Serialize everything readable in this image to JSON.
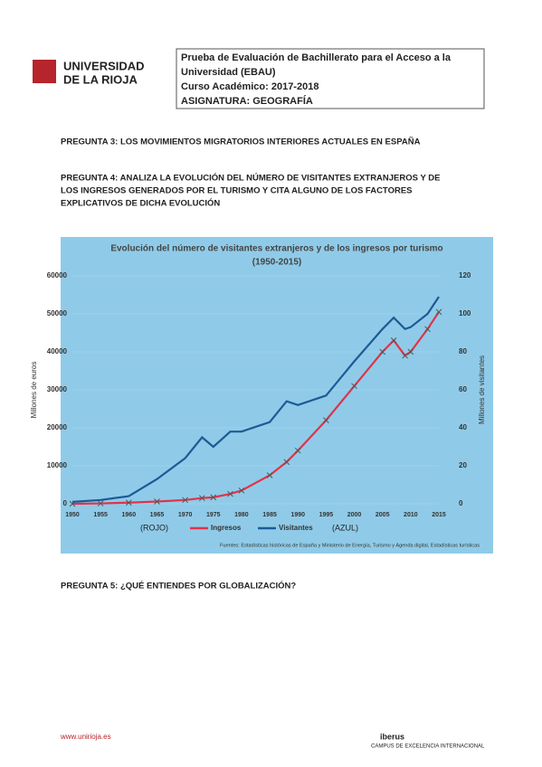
{
  "header": {
    "university": [
      "UNIVERSIDAD",
      "DE LA RIOJA"
    ],
    "lines": [
      "Prueba de Evaluación de Bachillerato para el Acceso a la",
      "Universidad (EBAU)",
      "Curso Académico: 2017-2018",
      "ASIGNATURA: GEOGRAFÍA"
    ]
  },
  "questions": [
    [
      "PREGUNTA 3: LOS MOVIMIENTOS MIGRATORIOS INTERIORES ACTUALES EN ESPAÑA"
    ],
    [
      "PREGUNTA 4: ANALIZA LA EVOLUCIÓN DEL NÚMERO DE VISITANTES EXTRANJEROS Y DE",
      "LOS INGRESOS GENERADOS POR EL TURISMO Y CITA ALGUNO DE LOS FACTORES",
      "EXPLICATIVOS DE DICHA EVOLUCIÓN"
    ]
  ],
  "question5": "PREGUNTA 5: ¿QUÉ ENTIENDES POR GLOBALIZACIÓN?",
  "chart_data": {
    "type": "line",
    "title": [
      "Evolución del número de visitantes extranjeros y de los ingresos por turismo",
      "(1950-2015)"
    ],
    "ylabel": "Millones de euros",
    "y2label": "Millones de visitantes",
    "x": [
      1950,
      1955,
      1960,
      1965,
      1970,
      1973,
      1975,
      1978,
      1980,
      1985,
      1988,
      1990,
      1995,
      2000,
      2005,
      2007,
      2009,
      2010,
      2013,
      2015
    ],
    "series": [
      {
        "name": "Ingresos",
        "color": "#e0334a",
        "values": [
          0,
          100,
          300,
          600,
          1000,
          1500,
          1700,
          2600,
          3500,
          7500,
          11000,
          14000,
          22000,
          31000,
          40000,
          43000,
          39000,
          40000,
          46000,
          50500
        ]
      },
      {
        "name": "Visitantes",
        "color": "#1d5a96",
        "axis": "y2",
        "values": [
          1,
          2,
          4,
          13,
          24,
          35,
          30,
          38,
          38,
          43,
          54,
          52,
          57,
          75,
          92,
          98,
          92,
          93,
          100,
          109
        ]
      }
    ],
    "xlim": [
      1950,
      2015
    ],
    "xticks": [
      1950,
      1955,
      1960,
      1965,
      1970,
      1975,
      1980,
      1985,
      1990,
      1995,
      2000,
      2005,
      2010,
      2015
    ],
    "ylim": [
      0,
      60000
    ],
    "yticks": [
      0,
      10000,
      20000,
      30000,
      40000,
      50000,
      60000
    ],
    "y2lim": [
      0,
      120
    ],
    "y2ticks": [
      0,
      20,
      40,
      60,
      80,
      100,
      120
    ],
    "annotations": [
      "(ROJO)",
      "(AZUL)"
    ],
    "source": "Fuentes: Estadísticas históricas de España y Ministerio de Energía, Turismo y Agenda digital, Estadísticas turísticas"
  },
  "footer": {
    "web": "www.unirioja.es",
    "brand": "iberus",
    "campus": "CAMPUS DE EXCELENCIA INTERNACIONAL"
  }
}
